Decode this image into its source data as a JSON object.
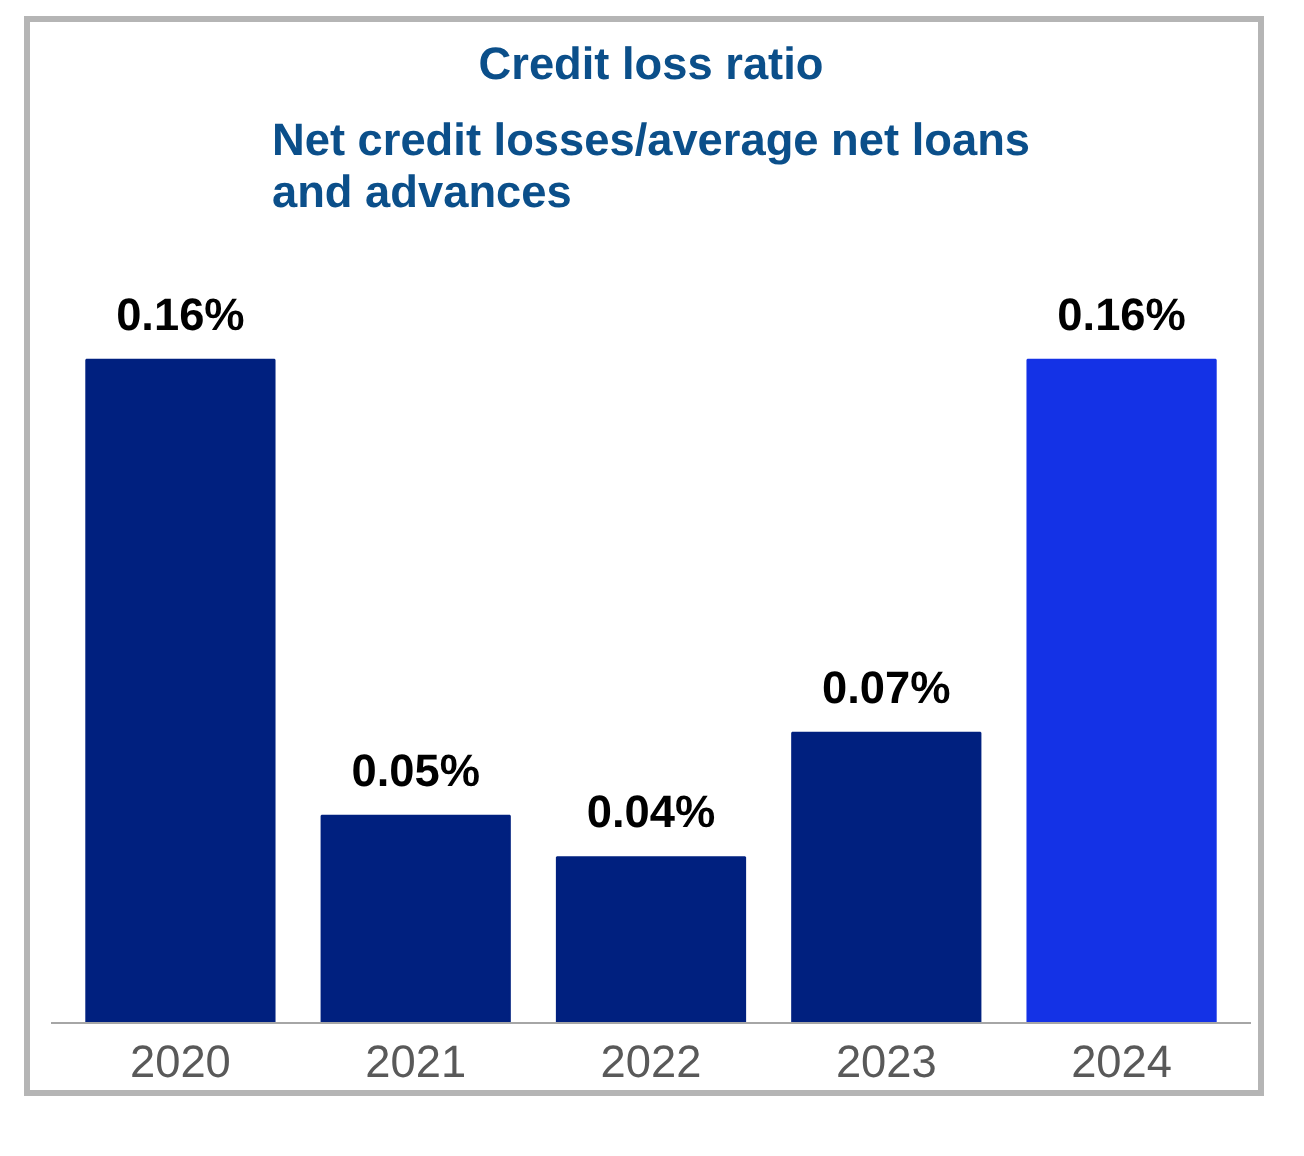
{
  "chart_data": {
    "type": "bar",
    "title": "Credit loss ratio",
    "subtitle": "Net credit losses/average net loans\nand advances",
    "categories": [
      "2020",
      "2021",
      "2022",
      "2023",
      "2024"
    ],
    "values": [
      0.16,
      0.05,
      0.04,
      0.07,
      0.16
    ],
    "colors": [
      "#00207f",
      "#00207f",
      "#00207f",
      "#00207f",
      "#1432e6"
    ],
    "value_labels": [
      "0.16%",
      "0.05%",
      "0.04%",
      "0.07%",
      "0.16%"
    ]
  }
}
